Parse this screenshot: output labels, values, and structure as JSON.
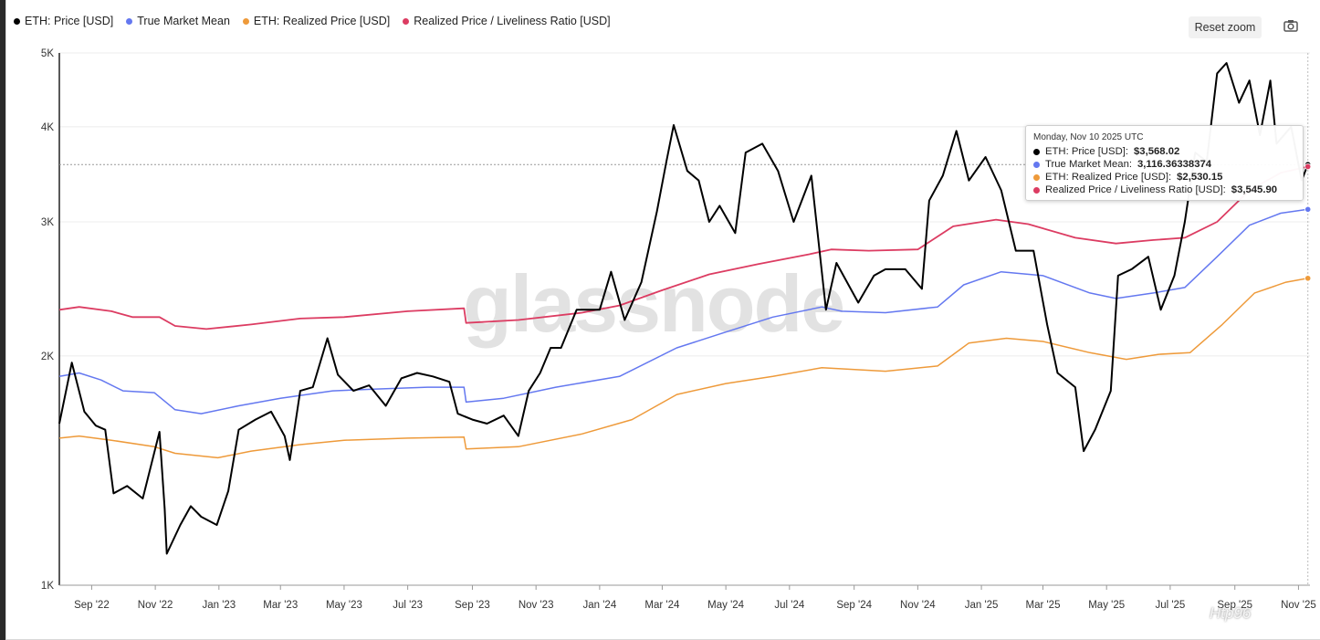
{
  "legend": [
    {
      "label": "ETH: Price [USD]",
      "color": "#000000"
    },
    {
      "label": "True Market Mean",
      "color": "#6478f0"
    },
    {
      "label": "ETH: Realized Price [USD]",
      "color": "#ee9a3a"
    },
    {
      "label": "Realized Price / Liveliness Ratio [USD]",
      "color": "#dc3c62"
    }
  ],
  "toolbar": {
    "reset_label": "Reset zoom",
    "camera_icon": "camera-icon"
  },
  "watermark": "glassnode",
  "corner_watermark": "Htp96",
  "tooltip": {
    "date": "Monday, Nov 10 2025 UTC",
    "rows": [
      {
        "label": "ETH: Price [USD]:",
        "value": "$3,568.02",
        "color": "#000000"
      },
      {
        "label": "True Market Mean:",
        "value": "3,116.36338374",
        "color": "#6478f0"
      },
      {
        "label": "ETH: Realized Price [USD]:",
        "value": "$2,530.15",
        "color": "#ee9a3a"
      },
      {
        "label": "Realized Price / Liveliness Ratio [USD]:",
        "value": "$3,545.90",
        "color": "#dc3c62"
      }
    ]
  },
  "chart_data": {
    "type": "line",
    "y_scale": "log",
    "ylim": [
      1000,
      5000
    ],
    "y_ticks": [
      {
        "v": 1000,
        "label": "1K"
      },
      {
        "v": 2000,
        "label": "2K"
      },
      {
        "v": 3000,
        "label": "3K"
      },
      {
        "v": 4000,
        "label": "4K"
      },
      {
        "v": 5000,
        "label": "5K"
      }
    ],
    "x_start": "2022-08-01",
    "x_end": "2025-11-12",
    "x_ticks": [
      {
        "date": "2022-09-01",
        "label": "Sep '22"
      },
      {
        "date": "2022-11-01",
        "label": "Nov '22"
      },
      {
        "date": "2023-01-01",
        "label": "Jan '23"
      },
      {
        "date": "2023-03-01",
        "label": "Mar '23"
      },
      {
        "date": "2023-05-01",
        "label": "May '23"
      },
      {
        "date": "2023-07-01",
        "label": "Jul '23"
      },
      {
        "date": "2023-09-01",
        "label": "Sep '23"
      },
      {
        "date": "2023-11-01",
        "label": "Nov '23"
      },
      {
        "date": "2024-01-01",
        "label": "Jan '24"
      },
      {
        "date": "2024-03-01",
        "label": "Mar '24"
      },
      {
        "date": "2024-05-01",
        "label": "May '24"
      },
      {
        "date": "2024-07-01",
        "label": "Jul '24"
      },
      {
        "date": "2024-09-01",
        "label": "Sep '24"
      },
      {
        "date": "2024-11-01",
        "label": "Nov '24"
      },
      {
        "date": "2025-01-01",
        "label": "Jan '25"
      },
      {
        "date": "2025-03-01",
        "label": "Mar '25"
      },
      {
        "date": "2025-05-01",
        "label": "May '25"
      },
      {
        "date": "2025-07-01",
        "label": "Jul '25"
      },
      {
        "date": "2025-09-01",
        "label": "Sep '25"
      },
      {
        "date": "2025-11-01",
        "label": "Nov '25"
      }
    ],
    "crosshair": {
      "date": "2025-11-10",
      "value": 3568.02
    },
    "series": [
      {
        "name": "ETH: Price [USD]",
        "color": "#000000",
        "width": 2,
        "points": [
          [
            "2022-08-01",
            1630
          ],
          [
            "2022-08-13",
            1960
          ],
          [
            "2022-08-25",
            1690
          ],
          [
            "2022-09-05",
            1620
          ],
          [
            "2022-09-14",
            1600
          ],
          [
            "2022-09-22",
            1320
          ],
          [
            "2022-10-05",
            1350
          ],
          [
            "2022-10-20",
            1300
          ],
          [
            "2022-11-05",
            1590
          ],
          [
            "2022-11-10",
            1260
          ],
          [
            "2022-11-12",
            1100
          ],
          [
            "2022-11-25",
            1200
          ],
          [
            "2022-12-05",
            1270
          ],
          [
            "2022-12-15",
            1230
          ],
          [
            "2022-12-30",
            1200
          ],
          [
            "2023-01-10",
            1330
          ],
          [
            "2023-01-20",
            1600
          ],
          [
            "2023-02-05",
            1650
          ],
          [
            "2023-02-20",
            1690
          ],
          [
            "2023-03-05",
            1570
          ],
          [
            "2023-03-10",
            1460
          ],
          [
            "2023-03-20",
            1800
          ],
          [
            "2023-04-01",
            1820
          ],
          [
            "2023-04-15",
            2110
          ],
          [
            "2023-04-25",
            1890
          ],
          [
            "2023-05-10",
            1800
          ],
          [
            "2023-05-25",
            1830
          ],
          [
            "2023-06-10",
            1720
          ],
          [
            "2023-06-25",
            1870
          ],
          [
            "2023-07-10",
            1900
          ],
          [
            "2023-07-25",
            1880
          ],
          [
            "2023-08-10",
            1850
          ],
          [
            "2023-08-18",
            1680
          ],
          [
            "2023-09-01",
            1650
          ],
          [
            "2023-09-15",
            1630
          ],
          [
            "2023-10-01",
            1670
          ],
          [
            "2023-10-15",
            1570
          ],
          [
            "2023-10-25",
            1800
          ],
          [
            "2023-11-05",
            1900
          ],
          [
            "2023-11-15",
            2050
          ],
          [
            "2023-11-25",
            2050
          ],
          [
            "2023-12-10",
            2300
          ],
          [
            "2024-01-01",
            2300
          ],
          [
            "2024-01-12",
            2580
          ],
          [
            "2024-01-25",
            2230
          ],
          [
            "2024-02-10",
            2500
          ],
          [
            "2024-02-25",
            3100
          ],
          [
            "2024-03-05",
            3600
          ],
          [
            "2024-03-12",
            4020
          ],
          [
            "2024-03-25",
            3500
          ],
          [
            "2024-04-05",
            3400
          ],
          [
            "2024-04-15",
            3000
          ],
          [
            "2024-04-25",
            3150
          ],
          [
            "2024-05-10",
            2900
          ],
          [
            "2024-05-20",
            3700
          ],
          [
            "2024-06-05",
            3800
          ],
          [
            "2024-06-20",
            3500
          ],
          [
            "2024-07-05",
            3000
          ],
          [
            "2024-07-22",
            3450
          ],
          [
            "2024-08-05",
            2300
          ],
          [
            "2024-08-15",
            2650
          ],
          [
            "2024-09-05",
            2350
          ],
          [
            "2024-09-20",
            2550
          ],
          [
            "2024-10-01",
            2600
          ],
          [
            "2024-10-20",
            2600
          ],
          [
            "2024-11-05",
            2450
          ],
          [
            "2024-11-12",
            3200
          ],
          [
            "2024-11-25",
            3450
          ],
          [
            "2024-12-08",
            3950
          ],
          [
            "2024-12-20",
            3400
          ],
          [
            "2025-01-05",
            3650
          ],
          [
            "2025-01-20",
            3300
          ],
          [
            "2025-02-03",
            2750
          ],
          [
            "2025-02-20",
            2750
          ],
          [
            "2025-03-05",
            2200
          ],
          [
            "2025-03-15",
            1900
          ],
          [
            "2025-04-01",
            1820
          ],
          [
            "2025-04-09",
            1500
          ],
          [
            "2025-04-20",
            1600
          ],
          [
            "2025-05-05",
            1800
          ],
          [
            "2025-05-12",
            2550
          ],
          [
            "2025-05-25",
            2600
          ],
          [
            "2025-06-10",
            2700
          ],
          [
            "2025-06-22",
            2300
          ],
          [
            "2025-07-05",
            2550
          ],
          [
            "2025-07-15",
            3000
          ],
          [
            "2025-07-25",
            3700
          ],
          [
            "2025-08-05",
            3600
          ],
          [
            "2025-08-15",
            4700
          ],
          [
            "2025-08-24",
            4850
          ],
          [
            "2025-09-05",
            4300
          ],
          [
            "2025-09-15",
            4600
          ],
          [
            "2025-09-25",
            3900
          ],
          [
            "2025-10-05",
            4600
          ],
          [
            "2025-10-11",
            3800
          ],
          [
            "2025-10-25",
            4000
          ],
          [
            "2025-11-04",
            3400
          ],
          [
            "2025-11-10",
            3568
          ]
        ]
      },
      {
        "name": "True Market Mean",
        "color": "#6478f0",
        "width": 1.5,
        "points": [
          [
            "2022-08-01",
            1880
          ],
          [
            "2022-08-20",
            1900
          ],
          [
            "2022-09-10",
            1860
          ],
          [
            "2022-10-01",
            1800
          ],
          [
            "2022-10-31",
            1790
          ],
          [
            "2022-11-20",
            1700
          ],
          [
            "2022-12-15",
            1680
          ],
          [
            "2023-01-20",
            1720
          ],
          [
            "2023-03-01",
            1760
          ],
          [
            "2023-04-20",
            1800
          ],
          [
            "2023-06-01",
            1810
          ],
          [
            "2023-07-20",
            1820
          ],
          [
            "2023-08-24",
            1820
          ],
          [
            "2023-08-26",
            1740
          ],
          [
            "2023-10-01",
            1760
          ],
          [
            "2023-11-20",
            1820
          ],
          [
            "2024-01-20",
            1880
          ],
          [
            "2024-03-15",
            2050
          ],
          [
            "2024-05-01",
            2150
          ],
          [
            "2024-06-15",
            2250
          ],
          [
            "2024-08-01",
            2320
          ],
          [
            "2024-08-20",
            2290
          ],
          [
            "2024-10-01",
            2280
          ],
          [
            "2024-11-20",
            2320
          ],
          [
            "2024-12-15",
            2480
          ],
          [
            "2025-01-20",
            2580
          ],
          [
            "2025-03-01",
            2550
          ],
          [
            "2025-04-15",
            2420
          ],
          [
            "2025-05-10",
            2380
          ],
          [
            "2025-06-15",
            2420
          ],
          [
            "2025-07-15",
            2460
          ],
          [
            "2025-08-15",
            2700
          ],
          [
            "2025-09-15",
            2970
          ],
          [
            "2025-10-15",
            3080
          ],
          [
            "2025-11-10",
            3116
          ]
        ]
      },
      {
        "name": "ETH: Realized Price [USD]",
        "color": "#ee9a3a",
        "width": 1.5,
        "points": [
          [
            "2022-08-01",
            1560
          ],
          [
            "2022-08-20",
            1570
          ],
          [
            "2022-09-20",
            1550
          ],
          [
            "2022-10-31",
            1520
          ],
          [
            "2022-11-20",
            1490
          ],
          [
            "2022-12-31",
            1470
          ],
          [
            "2023-02-01",
            1500
          ],
          [
            "2023-03-20",
            1530
          ],
          [
            "2023-05-01",
            1550
          ],
          [
            "2023-07-01",
            1560
          ],
          [
            "2023-08-24",
            1565
          ],
          [
            "2023-08-26",
            1510
          ],
          [
            "2023-10-15",
            1520
          ],
          [
            "2023-12-15",
            1580
          ],
          [
            "2024-02-01",
            1650
          ],
          [
            "2024-03-15",
            1780
          ],
          [
            "2024-05-01",
            1840
          ],
          [
            "2024-06-15",
            1880
          ],
          [
            "2024-08-01",
            1930
          ],
          [
            "2024-10-01",
            1910
          ],
          [
            "2024-11-20",
            1940
          ],
          [
            "2024-12-20",
            2080
          ],
          [
            "2025-01-25",
            2110
          ],
          [
            "2025-03-01",
            2090
          ],
          [
            "2025-04-15",
            2020
          ],
          [
            "2025-05-20",
            1980
          ],
          [
            "2025-06-20",
            2010
          ],
          [
            "2025-07-20",
            2020
          ],
          [
            "2025-08-20",
            2200
          ],
          [
            "2025-09-20",
            2420
          ],
          [
            "2025-10-20",
            2500
          ],
          [
            "2025-11-10",
            2530
          ]
        ]
      },
      {
        "name": "Realized Price / Liveliness Ratio [USD]",
        "color": "#dc3c62",
        "width": 1.8,
        "points": [
          [
            "2022-08-01",
            2300
          ],
          [
            "2022-08-20",
            2320
          ],
          [
            "2022-09-20",
            2290
          ],
          [
            "2022-10-10",
            2250
          ],
          [
            "2022-11-05",
            2250
          ],
          [
            "2022-11-20",
            2190
          ],
          [
            "2022-12-20",
            2170
          ],
          [
            "2023-02-01",
            2200
          ],
          [
            "2023-03-20",
            2240
          ],
          [
            "2023-05-01",
            2250
          ],
          [
            "2023-07-01",
            2290
          ],
          [
            "2023-08-24",
            2310
          ],
          [
            "2023-08-26",
            2210
          ],
          [
            "2023-10-15",
            2230
          ],
          [
            "2023-12-15",
            2280
          ],
          [
            "2024-01-20",
            2330
          ],
          [
            "2024-03-01",
            2440
          ],
          [
            "2024-04-15",
            2560
          ],
          [
            "2024-06-01",
            2640
          ],
          [
            "2024-07-20",
            2720
          ],
          [
            "2024-08-10",
            2760
          ],
          [
            "2024-09-15",
            2750
          ],
          [
            "2024-11-01",
            2760
          ],
          [
            "2024-12-05",
            2960
          ],
          [
            "2025-01-15",
            3020
          ],
          [
            "2025-02-15",
            2980
          ],
          [
            "2025-04-01",
            2860
          ],
          [
            "2025-05-10",
            2810
          ],
          [
            "2025-06-15",
            2840
          ],
          [
            "2025-07-15",
            2860
          ],
          [
            "2025-08-15",
            3000
          ],
          [
            "2025-09-15",
            3300
          ],
          [
            "2025-10-15",
            3480
          ],
          [
            "2025-11-10",
            3546
          ]
        ]
      }
    ]
  }
}
